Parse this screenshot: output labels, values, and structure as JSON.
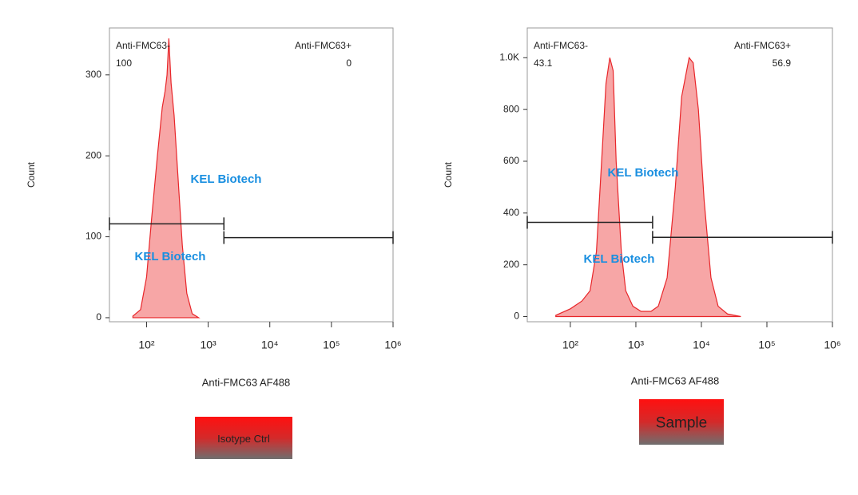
{
  "chart_data": [
    {
      "type": "area",
      "xscale": "log",
      "color": "#f26b6b",
      "line_color": "#e8262a",
      "ylabel": "Count",
      "xlabel": "Anti-FMC63 AF488",
      "x": [
        60,
        80,
        100,
        120,
        150,
        180,
        200,
        215,
        230,
        250,
        280,
        320,
        380,
        450,
        550,
        700
      ],
      "values": [
        2,
        10,
        50,
        120,
        200,
        260,
        280,
        300,
        345,
        290,
        250,
        180,
        90,
        30,
        5,
        0
      ],
      "xlim": [
        25,
        1000000
      ],
      "xticks": [
        {
          "value": 100,
          "label": "10²"
        },
        {
          "value": 1000,
          "label": "10³"
        },
        {
          "value": 10000,
          "label": "10⁴"
        },
        {
          "value": 100000,
          "label": "10⁵"
        },
        {
          "value": 1000000,
          "label": "10⁶"
        }
      ],
      "ylim": [
        -5,
        358
      ],
      "yticks": [
        0,
        100,
        200,
        300
      ],
      "gates": [
        {
          "name": "Anti-FMC63-",
          "value": 100,
          "x": [
            25,
            1800
          ],
          "y": 116
        },
        {
          "name": "Anti-FMC63+",
          "value": 0,
          "x": [
            1800,
            1000000
          ],
          "y": 99
        }
      ],
      "watermarks": [
        "KEL Biotech",
        "KEL Biotech"
      ],
      "button": "Isotype Ctrl"
    },
    {
      "type": "area",
      "xscale": "log",
      "color": "#f26b6b",
      "line_color": "#e8262a",
      "ylabel": "Count",
      "xlabel": "Anti-FMC63 AF488",
      "x": [
        60,
        100,
        150,
        200,
        250,
        300,
        350,
        400,
        450,
        500,
        600,
        700,
        900,
        1200,
        1700,
        2200,
        3000,
        4000,
        5000,
        6500,
        7500,
        9000,
        11000,
        14000,
        18000,
        25000,
        40000
      ],
      "values": [
        5,
        30,
        60,
        100,
        250,
        600,
        900,
        1000,
        950,
        600,
        250,
        100,
        40,
        20,
        20,
        40,
        150,
        500,
        850,
        1000,
        980,
        800,
        450,
        150,
        40,
        10,
        0
      ],
      "xlim": [
        22,
        1000000
      ],
      "xticks": [
        {
          "value": 100,
          "label": "10²"
        },
        {
          "value": 1000,
          "label": "10³"
        },
        {
          "value": 10000,
          "label": "10⁴"
        },
        {
          "value": 100000,
          "label": "10⁵"
        },
        {
          "value": 1000000,
          "label": "10⁶"
        }
      ],
      "ylim": [
        -20,
        1115
      ],
      "yticks": [
        0,
        200,
        400,
        600,
        800,
        {
          "value": 1000,
          "label": "1.0K"
        }
      ],
      "gates": [
        {
          "name": "Anti-FMC63-",
          "value": 43.1,
          "x": [
            22,
            1800
          ],
          "y": 364
        },
        {
          "name": "Anti-FMC63+",
          "value": 56.9,
          "x": [
            1800,
            1000000
          ],
          "y": 306
        }
      ],
      "watermarks": [
        "KEL Biotech",
        "KEL Biotech"
      ],
      "button": "Sample"
    }
  ]
}
